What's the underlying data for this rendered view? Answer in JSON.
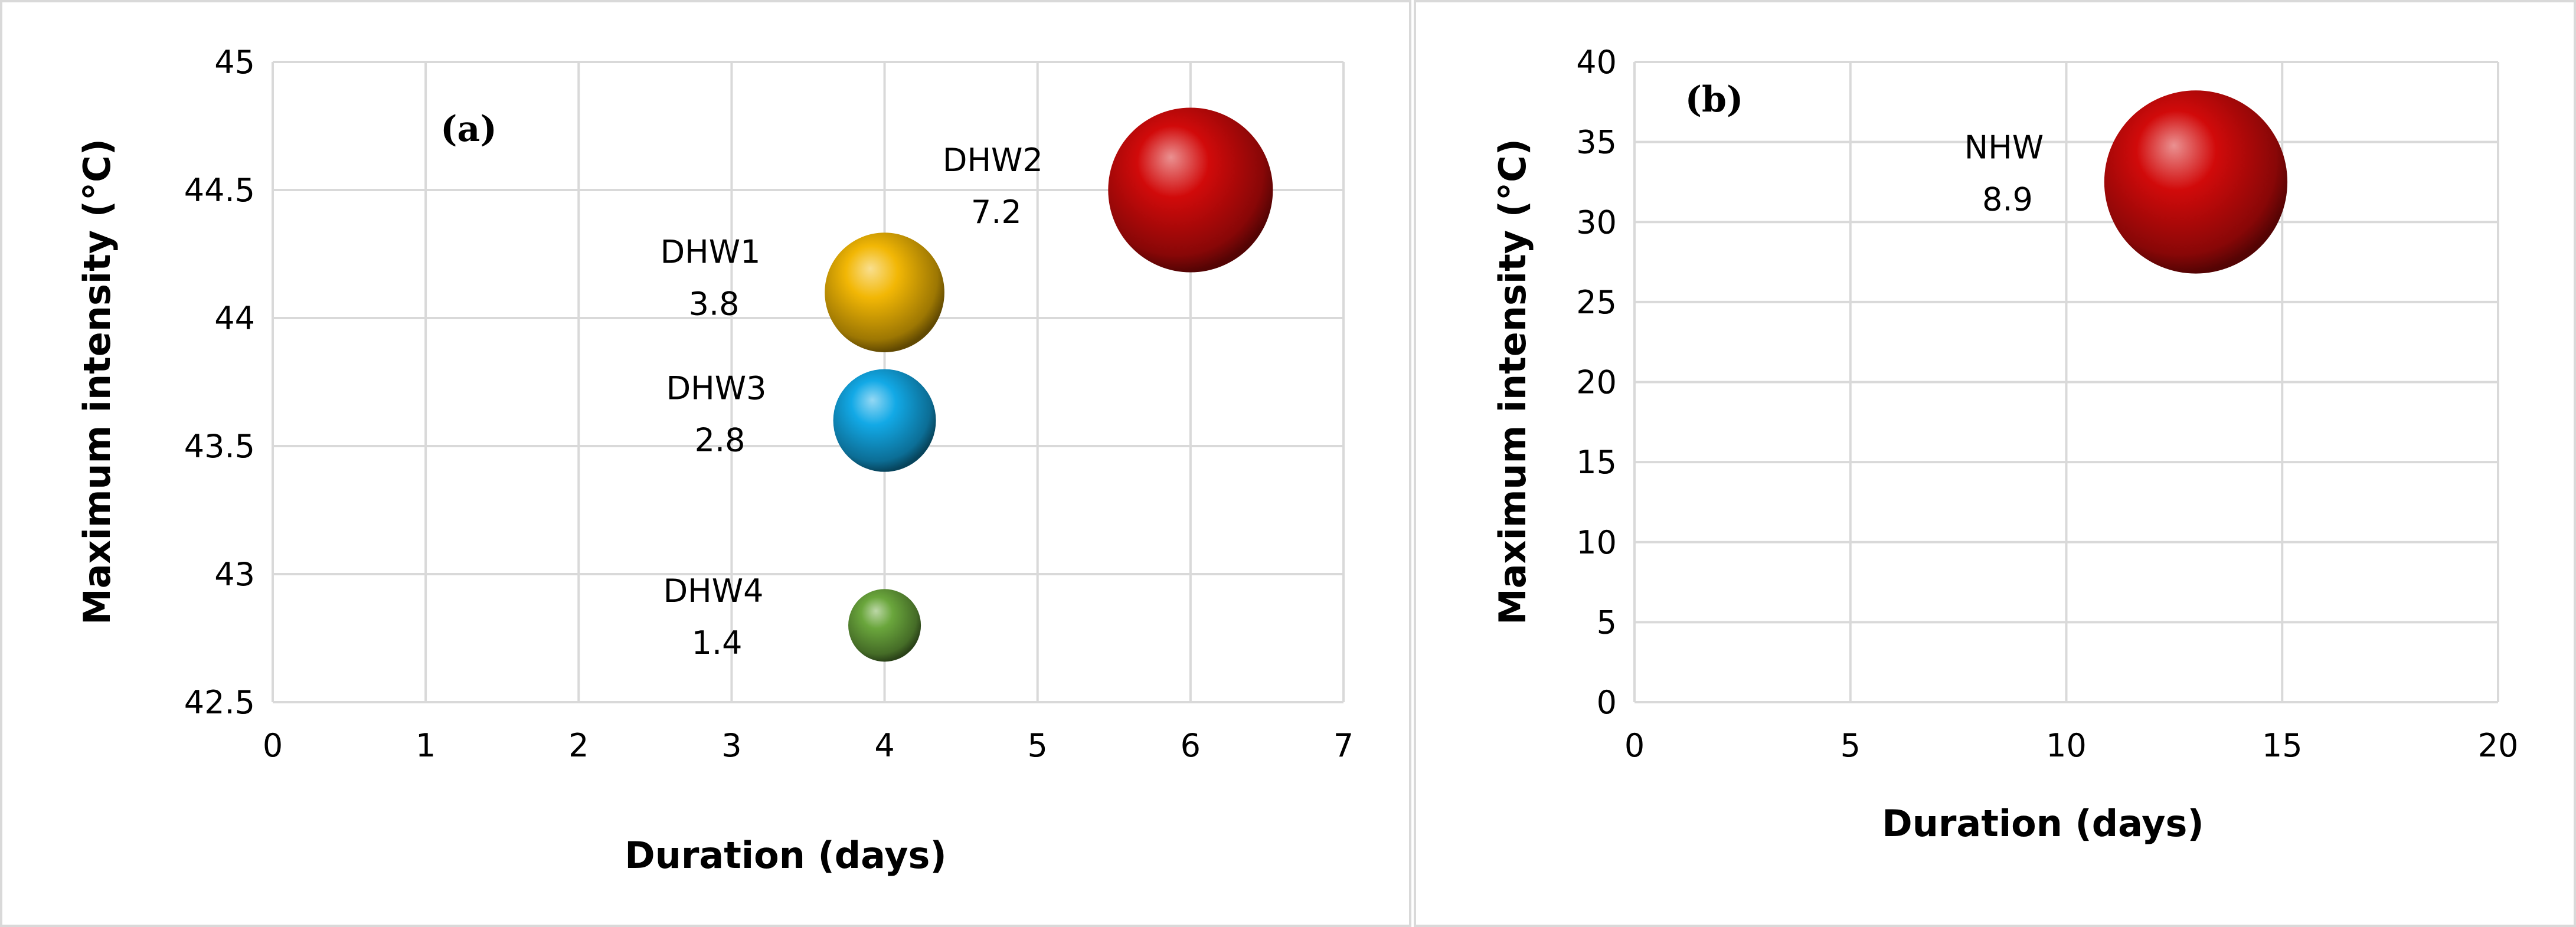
{
  "chart_data": [
    {
      "type": "scatter",
      "variant": "bubble",
      "panel_label": "(a)",
      "xlabel": "Duration (days)",
      "ylabel": "Maximum intensity (°C)",
      "xlim": [
        0,
        7
      ],
      "ylim": [
        42.5,
        45
      ],
      "x_ticks": [
        "0",
        "1",
        "2",
        "3",
        "4",
        "5",
        "6",
        "7"
      ],
      "y_ticks": [
        "42.5",
        "43",
        "43.5",
        "44",
        "44.5",
        "45"
      ],
      "grid": true,
      "legend": "none",
      "points": [
        {
          "name": "DHW1",
          "x": 4,
          "y": 44.1,
          "size": 3.8,
          "label": "3.8",
          "color": "#f2b705"
        },
        {
          "name": "DHW2",
          "x": 6,
          "y": 44.5,
          "size": 7.2,
          "label": "7.2",
          "color": "#d10a0a"
        },
        {
          "name": "DHW3",
          "x": 4,
          "y": 43.6,
          "size": 2.8,
          "label": "2.8",
          "color": "#12a9e6"
        },
        {
          "name": "DHW4",
          "x": 4,
          "y": 42.8,
          "size": 1.4,
          "label": "1.4",
          "color": "#6aa63c"
        }
      ]
    },
    {
      "type": "scatter",
      "variant": "bubble",
      "panel_label": "(b)",
      "xlabel": "Duration (days)",
      "ylabel": "Maximum intensity (°C)",
      "xlim": [
        0,
        20
      ],
      "ylim": [
        0,
        40
      ],
      "x_ticks": [
        "0",
        "5",
        "10",
        "15",
        "20"
      ],
      "y_ticks": [
        "0",
        "5",
        "10",
        "15",
        "20",
        "25",
        "30",
        "35",
        "40"
      ],
      "grid": true,
      "legend": "none",
      "points": [
        {
          "name": "NHW",
          "x": 13,
          "y": 32.5,
          "size": 8.9,
          "label": "8.9",
          "color": "#d10a0a"
        }
      ]
    }
  ]
}
